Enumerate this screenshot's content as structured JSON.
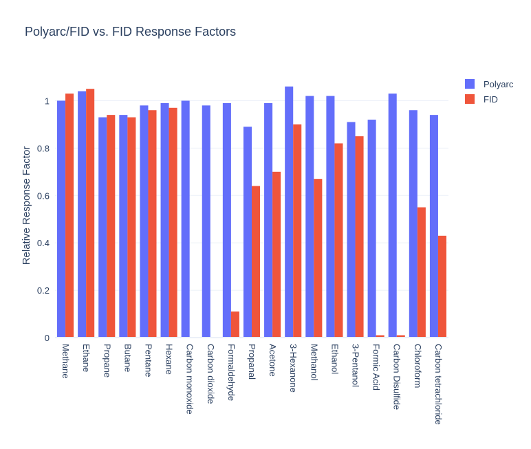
{
  "chart_data": {
    "type": "bar",
    "title": "Polyarc/FID vs. FID Response Factors",
    "xlabel": "",
    "ylabel": "Relative Response Factor",
    "ylim": [
      0,
      1.1
    ],
    "yticks": [
      0,
      0.2,
      0.4,
      0.6,
      0.8,
      1
    ],
    "ytick_labels": [
      "0",
      "0.2",
      "0.4",
      "0.6",
      "0.8",
      "1"
    ],
    "grid": true,
    "legend_position": "top-right",
    "categories": [
      "Methane",
      "Ethane",
      "Propane",
      "Butane",
      "Pentane",
      "Hexane",
      "Carbon monoxide",
      "Carbon dioxide",
      "Formaldehyde",
      "Propanal",
      "Acetone",
      "3-Hexanone",
      "Methanol",
      "Ethanol",
      "3-Pentanol",
      "Formic Acid",
      "Carbon Disulfide",
      "Chloroform",
      "Carbon tetrachloride"
    ],
    "series": [
      {
        "name": "Polyarc",
        "color": "#636efa",
        "values": [
          1.0,
          1.04,
          0.93,
          0.94,
          0.98,
          0.99,
          1.0,
          0.98,
          0.99,
          0.89,
          0.99,
          1.06,
          1.02,
          1.02,
          0.91,
          0.92,
          1.03,
          0.96,
          0.94
        ]
      },
      {
        "name": "FID",
        "color": "#ef553b",
        "values": [
          1.03,
          1.05,
          0.94,
          0.93,
          0.96,
          0.97,
          0,
          0,
          0.11,
          0.64,
          0.7,
          0.9,
          0.67,
          0.82,
          0.85,
          0.01,
          0.01,
          0.55,
          0.43
        ]
      }
    ]
  }
}
